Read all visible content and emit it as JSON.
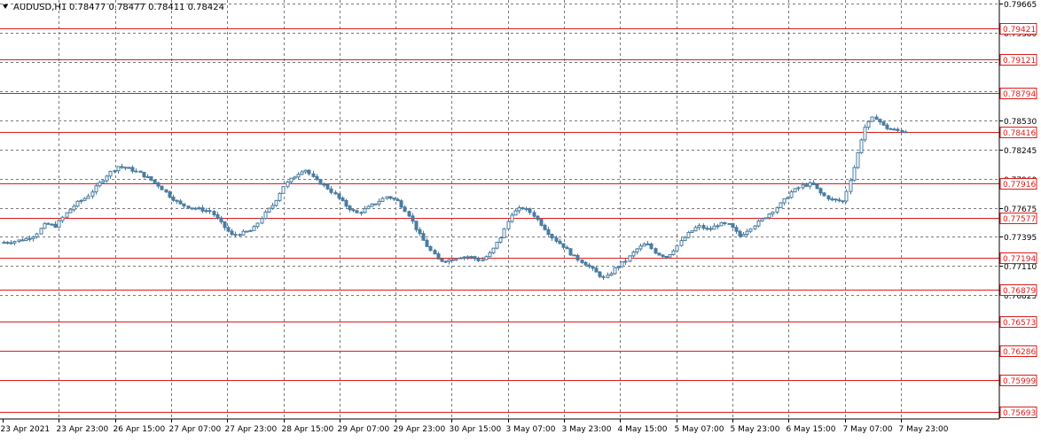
{
  "header": {
    "symbol": "AUDUSD,H1",
    "ohlc": "0.78477 0.78477 0.78411 0.78424"
  },
  "colors": {
    "background": "#ffffff",
    "grid": "#7a7a7a",
    "candle": "#4a7ca0",
    "level_line": "#dd1c1c",
    "axis_text": "#000000"
  },
  "chart_data": {
    "type": "candlestick",
    "grid": true,
    "ylim": [
      0.7562,
      0.797
    ],
    "price_ticks": [
      "0.79665",
      "0.79380",
      "0.79095",
      "0.78810",
      "0.78530",
      "0.78245",
      "0.77960",
      "0.77675",
      "0.77395",
      "0.77110",
      "0.76825"
    ],
    "time_labels": [
      "23 Apr 2021",
      "23 Apr 23:00",
      "26 Apr 15:00",
      "27 Apr 07:00",
      "27 Apr 23:00",
      "28 Apr 15:00",
      "29 Apr 07:00",
      "29 Apr 23:00",
      "30 Apr 15:00",
      "3 May 07:00",
      "3 May 23:00",
      "4 May 15:00",
      "5 May 07:00",
      "5 May 23:00",
      "6 May 15:00",
      "7 May 07:00",
      "7 May 23:00"
    ],
    "levels": [
      0.79421,
      0.79121,
      0.78794,
      0.78416,
      0.77916,
      0.77577,
      0.77194,
      0.76879,
      0.76573,
      0.76286,
      0.75999,
      0.75693
    ],
    "level_labels": [
      "0.79421",
      "0.79121",
      "0.78794",
      "0.78416",
      "0.77916",
      "0.77577",
      "0.77194",
      "0.76879",
      "0.76573",
      "0.76286",
      "0.75999",
      "0.75693"
    ],
    "close_path": [
      0.7734,
      0.7735,
      0.7737,
      0.7741,
      0.7752,
      0.775,
      0.7762,
      0.7772,
      0.7778,
      0.7789,
      0.78,
      0.7808,
      0.7806,
      0.7802,
      0.7796,
      0.7789,
      0.7779,
      0.7771,
      0.7768,
      0.7766,
      0.7764,
      0.7752,
      0.7741,
      0.7743,
      0.7746,
      0.776,
      0.7771,
      0.7789,
      0.7798,
      0.7806,
      0.7795,
      0.7789,
      0.778,
      0.777,
      0.7762,
      0.7767,
      0.7773,
      0.7779,
      0.7774,
      0.7762,
      0.7743,
      0.7728,
      0.7716,
      0.7717,
      0.772,
      0.772,
      0.7716,
      0.7724,
      0.774,
      0.7762,
      0.7768,
      0.7762,
      0.775,
      0.7738,
      0.773,
      0.772,
      0.7714,
      0.7706,
      0.7698,
      0.7709,
      0.7716,
      0.7727,
      0.7733,
      0.7723,
      0.772,
      0.7731,
      0.7742,
      0.775,
      0.7746,
      0.7752,
      0.7751,
      0.774,
      0.7748,
      0.7755,
      0.7763,
      0.7772,
      0.7783,
      0.7789,
      0.7791,
      0.778,
      0.7775,
      0.7774,
      0.7806,
      0.7845,
      0.7857,
      0.7846,
      0.7843,
      0.7842
    ]
  }
}
